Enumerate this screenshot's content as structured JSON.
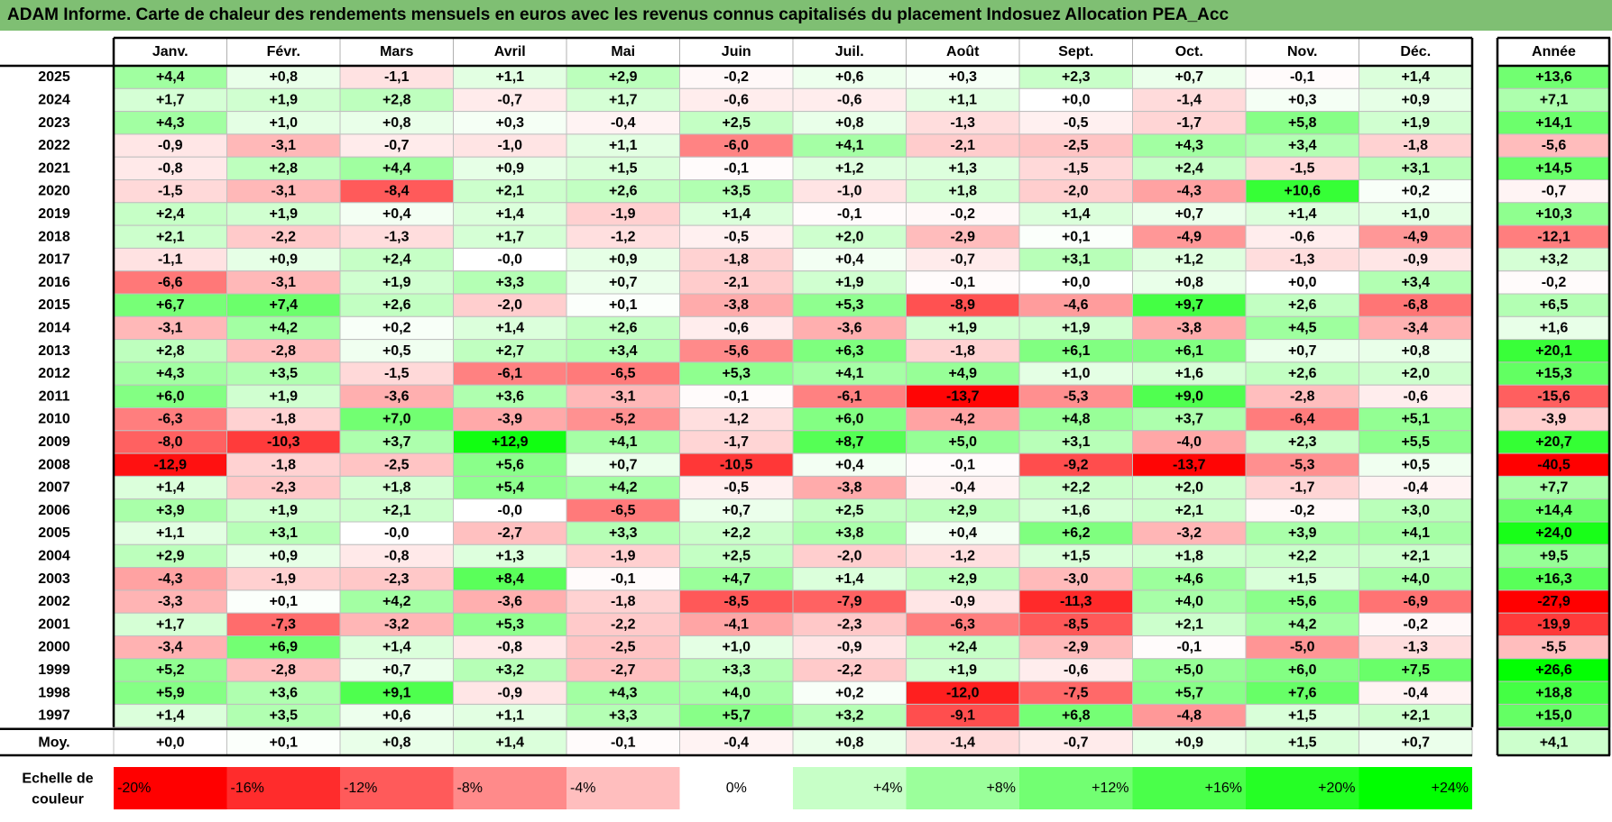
{
  "title": "ADAM Informe. Carte de chaleur des rendements mensuels en euros avec les revenus connus capitalisés du placement Indosuez Allocation PEA_Acc",
  "chart_data": {
    "type": "heatmap",
    "title": "ADAM Informe. Carte de chaleur des rendements mensuels en euros avec les revenus connus capitalisés du placement Indosuez Allocation PEA_Acc",
    "months": [
      "Janv.",
      "Févr.",
      "Mars",
      "Avril",
      "Mai",
      "Juin",
      "Juil.",
      "Août",
      "Sept.",
      "Oct.",
      "Nov.",
      "Déc."
    ],
    "annual_header": "Année",
    "rows": [
      {
        "year": "2025",
        "values": [
          "+4,4",
          "+0,8",
          "-1,1",
          "+1,1",
          "+2,9",
          "-0,2",
          "+0,6",
          "+0,3",
          "+2,3",
          "+0,7",
          "-0,1",
          "+1,4"
        ],
        "annual": "+13,6"
      },
      {
        "year": "2024",
        "values": [
          "+1,7",
          "+1,9",
          "+2,8",
          "-0,7",
          "+1,7",
          "-0,6",
          "-0,6",
          "+1,1",
          "+0,0",
          "-1,4",
          "+0,3",
          "+0,9"
        ],
        "annual": "+7,1"
      },
      {
        "year": "2023",
        "values": [
          "+4,3",
          "+1,0",
          "+0,8",
          "+0,3",
          "-0,4",
          "+2,5",
          "+0,8",
          "-1,3",
          "-0,5",
          "-1,7",
          "+5,8",
          "+1,9"
        ],
        "annual": "+14,1"
      },
      {
        "year": "2022",
        "values": [
          "-0,9",
          "-3,1",
          "-0,7",
          "-1,0",
          "+1,1",
          "-6,0",
          "+4,1",
          "-2,1",
          "-2,5",
          "+4,3",
          "+3,4",
          "-1,8"
        ],
        "annual": "-5,6"
      },
      {
        "year": "2021",
        "values": [
          "-0,8",
          "+2,8",
          "+4,4",
          "+0,9",
          "+1,5",
          "-0,1",
          "+1,2",
          "+1,3",
          "-1,5",
          "+2,4",
          "-1,5",
          "+3,1"
        ],
        "annual": "+14,5"
      },
      {
        "year": "2020",
        "values": [
          "-1,5",
          "-3,1",
          "-8,4",
          "+2,1",
          "+2,6",
          "+3,5",
          "-1,0",
          "+1,8",
          "-2,0",
          "-4,3",
          "+10,6",
          "+0,2"
        ],
        "annual": "-0,7"
      },
      {
        "year": "2019",
        "values": [
          "+2,4",
          "+1,9",
          "+0,4",
          "+1,4",
          "-1,9",
          "+1,4",
          "-0,1",
          "-0,2",
          "+1,4",
          "+0,7",
          "+1,4",
          "+1,0"
        ],
        "annual": "+10,3"
      },
      {
        "year": "2018",
        "values": [
          "+2,1",
          "-2,2",
          "-1,3",
          "+1,7",
          "-1,2",
          "-0,5",
          "+2,0",
          "-2,9",
          "+0,1",
          "-4,9",
          "-0,6",
          "-4,9"
        ],
        "annual": "-12,1"
      },
      {
        "year": "2017",
        "values": [
          "-1,1",
          "+0,9",
          "+2,4",
          "-0,0",
          "+0,9",
          "-1,8",
          "+0,4",
          "-0,7",
          "+3,1",
          "+1,2",
          "-1,3",
          "-0,9"
        ],
        "annual": "+3,2"
      },
      {
        "year": "2016",
        "values": [
          "-6,6",
          "-3,1",
          "+1,9",
          "+3,3",
          "+0,7",
          "-2,1",
          "+1,9",
          "-0,1",
          "+0,0",
          "+0,8",
          "+0,0",
          "+3,4"
        ],
        "annual": "-0,2"
      },
      {
        "year": "2015",
        "values": [
          "+6,7",
          "+7,4",
          "+2,6",
          "-2,0",
          "+0,1",
          "-3,8",
          "+5,3",
          "-8,9",
          "-4,6",
          "+9,7",
          "+2,6",
          "-6,8"
        ],
        "annual": "+6,5"
      },
      {
        "year": "2014",
        "values": [
          "-3,1",
          "+4,2",
          "+0,2",
          "+1,4",
          "+2,6",
          "-0,6",
          "-3,6",
          "+1,9",
          "+1,9",
          "-3,8",
          "+4,5",
          "-3,4"
        ],
        "annual": "+1,6"
      },
      {
        "year": "2013",
        "values": [
          "+2,8",
          "-2,8",
          "+0,5",
          "+2,7",
          "+3,4",
          "-5,6",
          "+6,3",
          "-1,8",
          "+6,1",
          "+6,1",
          "+0,7",
          "+0,8"
        ],
        "annual": "+20,1"
      },
      {
        "year": "2012",
        "values": [
          "+4,3",
          "+3,5",
          "-1,5",
          "-6,1",
          "-6,5",
          "+5,3",
          "+4,1",
          "+4,9",
          "+1,0",
          "+1,6",
          "+2,6",
          "+2,0"
        ],
        "annual": "+15,3"
      },
      {
        "year": "2011",
        "values": [
          "+6,0",
          "+1,9",
          "-3,6",
          "+3,6",
          "-3,1",
          "-0,1",
          "-6,1",
          "-13,7",
          "-5,3",
          "+9,0",
          "-2,8",
          "-0,6"
        ],
        "annual": "-15,6"
      },
      {
        "year": "2010",
        "values": [
          "-6,3",
          "-1,8",
          "+7,0",
          "-3,9",
          "-5,2",
          "-1,2",
          "+6,0",
          "-4,2",
          "+4,8",
          "+3,7",
          "-6,4",
          "+5,1"
        ],
        "annual": "-3,9"
      },
      {
        "year": "2009",
        "values": [
          "-8,0",
          "-10,3",
          "+3,7",
          "+12,9",
          "+4,1",
          "-1,7",
          "+8,7",
          "+5,0",
          "+3,1",
          "-4,0",
          "+2,3",
          "+5,5"
        ],
        "annual": "+20,7"
      },
      {
        "year": "2008",
        "values": [
          "-12,9",
          "-1,8",
          "-2,5",
          "+5,6",
          "+0,7",
          "-10,5",
          "+0,4",
          "-0,1",
          "-9,2",
          "-13,7",
          "-5,3",
          "+0,5"
        ],
        "annual": "-40,5"
      },
      {
        "year": "2007",
        "values": [
          "+1,4",
          "-2,3",
          "+1,8",
          "+5,4",
          "+4,2",
          "-0,5",
          "-3,8",
          "-0,4",
          "+2,2",
          "+2,0",
          "-1,7",
          "-0,4"
        ],
        "annual": "+7,7"
      },
      {
        "year": "2006",
        "values": [
          "+3,9",
          "+1,9",
          "+2,1",
          "-0,0",
          "-6,5",
          "+0,7",
          "+2,5",
          "+2,9",
          "+1,6",
          "+2,1",
          "-0,2",
          "+3,0"
        ],
        "annual": "+14,4"
      },
      {
        "year": "2005",
        "values": [
          "+1,1",
          "+3,1",
          "-0,0",
          "-2,7",
          "+3,3",
          "+2,2",
          "+3,8",
          "+0,4",
          "+6,2",
          "-3,2",
          "+3,9",
          "+4,1"
        ],
        "annual": "+24,0"
      },
      {
        "year": "2004",
        "values": [
          "+2,9",
          "+0,9",
          "-0,8",
          "+1,3",
          "-1,9",
          "+2,5",
          "-2,0",
          "-1,2",
          "+1,5",
          "+1,8",
          "+2,2",
          "+2,1"
        ],
        "annual": "+9,5"
      },
      {
        "year": "2003",
        "values": [
          "-4,3",
          "-1,9",
          "-2,3",
          "+8,4",
          "-0,1",
          "+4,7",
          "+1,4",
          "+2,9",
          "-3,0",
          "+4,6",
          "+1,5",
          "+4,0"
        ],
        "annual": "+16,3"
      },
      {
        "year": "2002",
        "values": [
          "-3,3",
          "+0,1",
          "+4,2",
          "-3,6",
          "-1,8",
          "-8,5",
          "-7,9",
          "-0,9",
          "-11,3",
          "+4,0",
          "+5,6",
          "-6,9"
        ],
        "annual": "-27,9"
      },
      {
        "year": "2001",
        "values": [
          "+1,7",
          "-7,3",
          "-3,2",
          "+5,3",
          "-2,2",
          "-4,1",
          "-2,3",
          "-6,3",
          "-8,5",
          "+2,1",
          "+4,2",
          "-0,2"
        ],
        "annual": "-19,9"
      },
      {
        "year": "2000",
        "values": [
          "-3,4",
          "+6,9",
          "+1,4",
          "-0,8",
          "-2,5",
          "+1,0",
          "-0,9",
          "+2,4",
          "-2,9",
          "-0,1",
          "-5,0",
          "-1,3"
        ],
        "annual": "-5,5"
      },
      {
        "year": "1999",
        "values": [
          "+5,2",
          "-2,8",
          "+0,7",
          "+3,2",
          "-2,7",
          "+3,3",
          "-2,2",
          "+1,9",
          "-0,6",
          "+5,0",
          "+6,0",
          "+7,5"
        ],
        "annual": "+26,6"
      },
      {
        "year": "1998",
        "values": [
          "+5,9",
          "+3,6",
          "+9,1",
          "-0,9",
          "+4,3",
          "+4,0",
          "+0,2",
          "-12,0",
          "-7,5",
          "+5,7",
          "+7,6",
          "-0,4"
        ],
        "annual": "+18,8"
      },
      {
        "year": "1997",
        "values": [
          "+1,4",
          "+3,5",
          "+0,6",
          "+1,1",
          "+3,3",
          "+5,7",
          "+3,2",
          "-9,1",
          "+6,8",
          "-4,8",
          "+1,5",
          "+2,1"
        ],
        "annual": "+15,0"
      }
    ],
    "average": {
      "label": "Moy.",
      "values": [
        "+0,0",
        "+0,1",
        "+0,8",
        "+1,4",
        "-0,1",
        "-0,4",
        "+0,8",
        "-1,4",
        "-0,7",
        "+0,9",
        "+1,5",
        "+0,7"
      ],
      "annual": "+4,1"
    },
    "scale": {
      "label": [
        "Echelle de",
        "couleur"
      ],
      "steps": [
        "-20%",
        "-16%",
        "-12%",
        "-8%",
        "-4%",
        "0%",
        "+4%",
        "+8%",
        "+12%",
        "+16%",
        "+20%",
        "+24%"
      ]
    },
    "colors": {
      "negative_max": "#ff0000",
      "neutral": "#ffffff",
      "positive_max": "#00ff00",
      "title_bar": "#7fbf73"
    }
  }
}
